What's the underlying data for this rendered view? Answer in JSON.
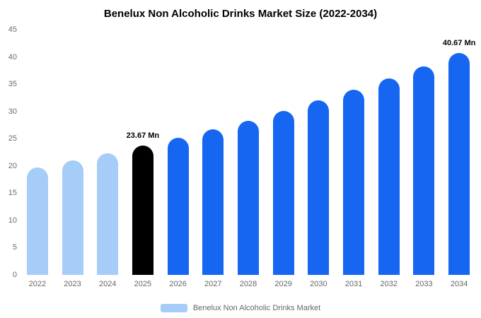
{
  "chart_data": {
    "type": "bar",
    "title": "Benelux Non Alcoholic Drinks Market Size (2022-2034)",
    "categories": [
      "2022",
      "2023",
      "2024",
      "2025",
      "2026",
      "2027",
      "2028",
      "2029",
      "2030",
      "2031",
      "2032",
      "2033",
      "2034"
    ],
    "values": [
      19.75,
      21.0,
      22.3,
      23.67,
      25.1,
      26.7,
      28.3,
      30.1,
      32.0,
      34.0,
      36.1,
      38.3,
      40.67
    ],
    "unit": "Mn",
    "ylim": [
      0,
      45
    ],
    "ytick_step": 5,
    "grid": false,
    "xlabel": "",
    "ylabel": "",
    "annotations": [
      {
        "index": 3,
        "text": "23.67 Mn"
      },
      {
        "index": 12,
        "text": "40.67 Mn"
      }
    ],
    "colors": {
      "default": "#1666f2",
      "light": "#a6ccf8",
      "highlight": "#000000"
    },
    "bar_colors": [
      "light",
      "light",
      "light",
      "highlight",
      "default",
      "default",
      "default",
      "default",
      "default",
      "default",
      "default",
      "default",
      "default"
    ],
    "legend": [
      {
        "label": "Benelux Non Alcoholic Drinks Market",
        "color": "#a6ccf8",
        "position": "bottom"
      }
    ]
  }
}
